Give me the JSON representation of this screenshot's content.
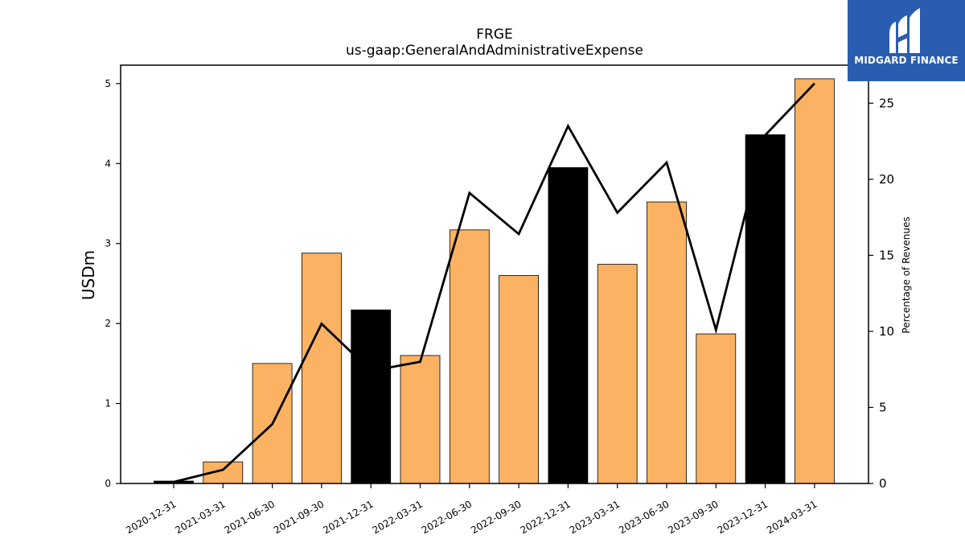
{
  "chart_data": {
    "type": "bar",
    "title": "FRGE",
    "subtitle": "us-gaap:GeneralAndAdministrativeExpense",
    "ylabel": "USDm",
    "y2label": "Percentage of Revenues",
    "ylim": [
      0,
      5.23
    ],
    "y2lim": [
      0,
      27.5
    ],
    "yticks": [
      0,
      1,
      2,
      3,
      4,
      5
    ],
    "y2ticks": [
      0,
      5,
      10,
      15,
      20,
      25
    ],
    "categories": [
      "2020-12-31",
      "2021-03-31",
      "2021-06-30",
      "2021-09-30",
      "2021-12-31",
      "2022-03-31",
      "2022-06-30",
      "2022-09-30",
      "2022-12-31",
      "2023-03-31",
      "2023-06-30",
      "2023-09-30",
      "2023-12-31",
      "2024-03-31"
    ],
    "series": [
      {
        "type": "bar",
        "axis": "left",
        "values": [
          0.03,
          0.27,
          1.5,
          2.88,
          2.17,
          1.6,
          3.17,
          2.6,
          3.95,
          2.74,
          3.52,
          1.87,
          4.36,
          5.06
        ],
        "colors": [
          "#000000",
          "#fbb262",
          "#fbb262",
          "#fbb262",
          "#000000",
          "#fbb262",
          "#fbb262",
          "#fbb262",
          "#000000",
          "#fbb262",
          "#fbb262",
          "#fbb262",
          "#000000",
          "#fbb262"
        ]
      },
      {
        "type": "line",
        "axis": "right",
        "values": [
          0.1,
          0.9,
          3.9,
          10.5,
          7.4,
          8.0,
          19.1,
          16.4,
          23.5,
          17.8,
          21.1,
          10.1,
          22.9,
          26.3
        ],
        "color": "#000000"
      }
    ]
  },
  "logo": {
    "text": "MIDGARD FINANCE",
    "background": "#2a5db0"
  }
}
